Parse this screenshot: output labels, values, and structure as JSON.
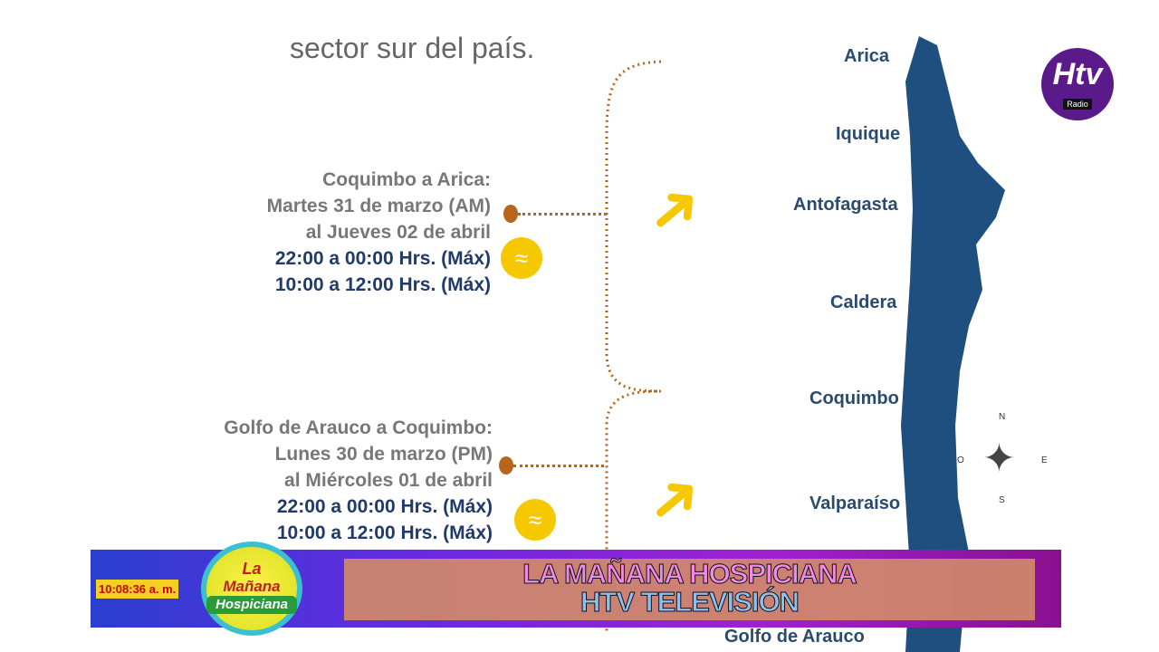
{
  "intro_text": "sector sur del país.",
  "sections": [
    {
      "title": "Coquimbo a Arica:",
      "from": "Martes 31 de marzo (AM)",
      "to": "al Jueves 02 de abril",
      "times": [
        "22:00 a 00:00 Hrs. (Máx)",
        "10:00 a 12:00 Hrs. (Máx)"
      ]
    },
    {
      "title": "Golfo de Arauco  a Coquimbo:",
      "from": "Lunes 30 de marzo (PM)",
      "to": "al Miércoles 01 de abril",
      "times": [
        "22:00 a 00:00 Hrs. (Máx)",
        "10:00 a 12:00 Hrs. (Máx)"
      ]
    }
  ],
  "cities": [
    "Arica",
    "Iquique",
    "Antofagasta",
    "Caldera",
    "Coquimbo",
    "Valparaíso",
    "Golfo de Arauco"
  ],
  "compass": {
    "n": "N",
    "s": "S",
    "e": "E",
    "o": "O"
  },
  "logo": {
    "brand": "Htv",
    "sub": "Radio"
  },
  "ticker": {
    "time": "10:08:36 a. m.",
    "line1": "LA MAÑANA HOSPICIANA",
    "line2": "HTV TELEVISIÓN",
    "show_logo": [
      "La",
      "Mañana",
      "Hospiciana"
    ]
  },
  "colors": {
    "map": "#1e4f7e",
    "accent": "#f5c800",
    "dots": "#b5651d"
  }
}
